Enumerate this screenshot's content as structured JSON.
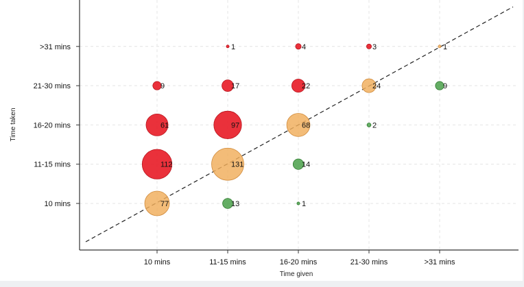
{
  "chart_data": {
    "type": "scatter",
    "subtype": "bubble",
    "title": "",
    "xlabel": "Time given",
    "ylabel": "Time taken",
    "x_categories": [
      "10 mins",
      "11-15 mins",
      "16-20 mins",
      "21-30 mins",
      ">31 mins"
    ],
    "y_categories": [
      "10 mins",
      "11-15 mins",
      "16-20 mins",
      "21-30 mins",
      ">31 mins"
    ],
    "grid": true,
    "reference_line": "diagonal dashed (taken = given)",
    "colors": {
      "over": "#e8202a",
      "equal": "#f0ad5a",
      "under": "#4aa04a"
    },
    "points": [
      {
        "x": "10 mins",
        "y": "10 mins",
        "value": 77,
        "group": "equal"
      },
      {
        "x": "11-15 mins",
        "y": "10 mins",
        "value": 13,
        "group": "under"
      },
      {
        "x": "16-20 mins",
        "y": "10 mins",
        "value": 1,
        "group": "under"
      },
      {
        "x": "10 mins",
        "y": "11-15 mins",
        "value": 112,
        "group": "over"
      },
      {
        "x": "11-15 mins",
        "y": "11-15 mins",
        "value": 131,
        "group": "equal"
      },
      {
        "x": "16-20 mins",
        "y": "11-15 mins",
        "value": 14,
        "group": "under"
      },
      {
        "x": "10 mins",
        "y": "16-20 mins",
        "value": 61,
        "group": "over"
      },
      {
        "x": "11-15 mins",
        "y": "16-20 mins",
        "value": 97,
        "group": "over"
      },
      {
        "x": "16-20 mins",
        "y": "16-20 mins",
        "value": 68,
        "group": "equal"
      },
      {
        "x": "21-30 mins",
        "y": "16-20 mins",
        "value": 2,
        "group": "under"
      },
      {
        "x": "10 mins",
        "y": "21-30 mins",
        "value": 9,
        "group": "over"
      },
      {
        "x": "11-15 mins",
        "y": "21-30 mins",
        "value": 17,
        "group": "over"
      },
      {
        "x": "16-20 mins",
        "y": "21-30 mins",
        "value": 22,
        "group": "over"
      },
      {
        "x": "21-30 mins",
        "y": "21-30 mins",
        "value": 24,
        "group": "equal"
      },
      {
        "x": ">31 mins",
        "y": "21-30 mins",
        "value": 9,
        "group": "under"
      },
      {
        "x": "11-15 mins",
        "y": ">31 mins",
        "value": 1,
        "group": "over"
      },
      {
        "x": "16-20 mins",
        "y": ">31 mins",
        "value": 4,
        "group": "over"
      },
      {
        "x": "21-30 mins",
        "y": ">31 mins",
        "value": 3,
        "group": "over"
      },
      {
        "x": ">31 mins",
        "y": ">31 mins",
        "value": 1,
        "group": "equal"
      }
    ]
  }
}
